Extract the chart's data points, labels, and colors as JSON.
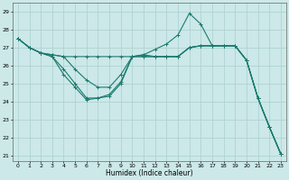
{
  "xlabel": "Humidex (Indice chaleur)",
  "bg_color": "#cce8e8",
  "line_color": "#1a7a6e",
  "grid_color": "#aacfcf",
  "xlim": [
    -0.5,
    23.5
  ],
  "ylim": [
    20.7,
    29.5
  ],
  "yticks": [
    21,
    22,
    23,
    24,
    25,
    26,
    27,
    28,
    29
  ],
  "xticks": [
    0,
    1,
    2,
    3,
    4,
    5,
    6,
    7,
    8,
    9,
    10,
    11,
    12,
    13,
    14,
    15,
    16,
    17,
    18,
    19,
    20,
    21,
    22,
    23
  ],
  "series": [
    {
      "x": [
        0,
        1,
        2,
        3,
        4,
        5,
        6,
        7,
        8,
        9,
        10,
        11,
        12,
        13,
        14,
        15,
        16,
        17,
        18,
        19,
        20,
        21,
        22,
        23
      ],
      "y": [
        27.5,
        27.0,
        26.7,
        26.6,
        26.5,
        26.5,
        26.5,
        26.5,
        26.5,
        26.5,
        26.5,
        26.5,
        26.5,
        26.5,
        26.5,
        27.0,
        27.1,
        27.1,
        27.1,
        27.1,
        26.3,
        24.2,
        22.6,
        21.1
      ]
    },
    {
      "x": [
        0,
        1,
        2,
        3,
        4,
        5,
        6,
        7,
        8,
        9,
        10,
        11,
        12,
        13,
        14,
        15,
        16,
        17,
        18,
        19,
        20,
        21,
        22,
        23
      ],
      "y": [
        27.5,
        27.0,
        26.7,
        26.6,
        26.5,
        25.8,
        25.2,
        24.8,
        24.8,
        25.5,
        26.5,
        26.6,
        26.9,
        27.2,
        27.7,
        28.9,
        28.3,
        27.1,
        27.1,
        27.1,
        26.3,
        24.2,
        22.6,
        21.1
      ]
    },
    {
      "x": [
        0,
        1,
        2,
        3,
        4,
        5,
        6,
        7,
        8,
        9,
        10,
        11,
        12,
        13,
        14,
        15,
        16,
        17,
        18,
        19,
        20,
        21,
        22,
        23
      ],
      "y": [
        27.5,
        27.0,
        26.7,
        26.5,
        25.8,
        25.0,
        24.2,
        24.2,
        24.3,
        25.0,
        26.5,
        26.6,
        26.5,
        26.5,
        26.5,
        27.0,
        27.1,
        27.1,
        27.1,
        27.1,
        26.3,
        24.2,
        22.6,
        21.1
      ]
    },
    {
      "x": [
        0,
        1,
        2,
        3,
        4,
        5,
        6,
        7,
        8,
        9,
        10,
        11,
        12,
        13,
        14,
        15,
        16,
        17,
        18,
        19,
        20,
        21,
        22,
        23
      ],
      "y": [
        27.5,
        27.0,
        26.7,
        26.5,
        25.5,
        24.8,
        24.1,
        24.2,
        24.4,
        25.1,
        26.5,
        26.5,
        26.5,
        26.5,
        26.5,
        27.0,
        27.1,
        27.1,
        27.1,
        27.1,
        26.3,
        24.2,
        22.6,
        21.1
      ]
    }
  ]
}
